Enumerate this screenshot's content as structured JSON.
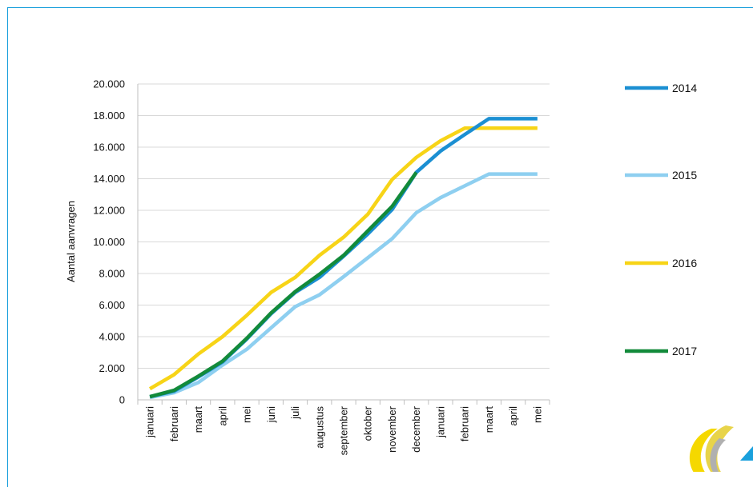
{
  "chart_data": {
    "type": "line",
    "title": "",
    "xlabel": "",
    "ylabel": "Aantal aanvragen",
    "categories": [
      "januari",
      "februari",
      "maart",
      "april",
      "mei",
      "juni",
      "juli",
      "augustus",
      "september",
      "oktober",
      "november",
      "december",
      "januari",
      "februari",
      "maart",
      "april",
      "mei"
    ],
    "ylim": [
      0,
      20000
    ],
    "y_ticks": [
      "0",
      "2.000",
      "4.000",
      "6.000",
      "8.000",
      "10.000",
      "12.000",
      "14.000",
      "16.000",
      "18.000",
      "20.000"
    ],
    "grid": true,
    "legend_position": "right",
    "series": [
      {
        "name": "2014",
        "color": "#1b8fd2",
        "values": [
          200,
          550,
          1450,
          2400,
          3850,
          5450,
          6800,
          7750,
          9100,
          10500,
          12050,
          14400,
          15750,
          16800,
          17800,
          17800,
          17800
        ]
      },
      {
        "name": "2015",
        "color": "#8ecff0",
        "values": [
          150,
          450,
          1100,
          2200,
          3200,
          4550,
          5900,
          6650,
          7800,
          9000,
          10200,
          11850,
          12800,
          13550,
          14300,
          14300,
          14300
        ]
      },
      {
        "name": "2016",
        "color": "#f7d417",
        "values": [
          700,
          1600,
          2900,
          4000,
          5350,
          6800,
          7750,
          9150,
          10300,
          11750,
          13950,
          15350,
          16400,
          17200,
          17200,
          17200,
          17200
        ]
      },
      {
        "name": "2017",
        "color": "#128a3a",
        "values": [
          200,
          600,
          1500,
          2450,
          3900,
          5500,
          6850,
          7950,
          9150,
          10700,
          12250,
          14400,
          null,
          null,
          null,
          null,
          null
        ]
      }
    ]
  }
}
